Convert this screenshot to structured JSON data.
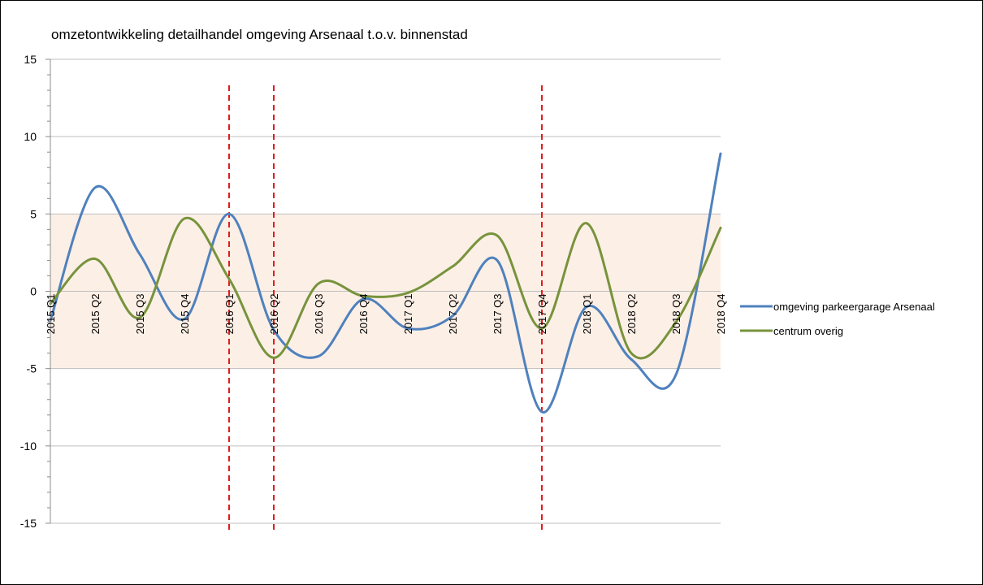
{
  "chart_data": {
    "type": "line",
    "title": "omzetontwikkeling detailhandel omgeving Arsenaal t.o.v. binnenstad",
    "xlabel": "",
    "ylabel": "",
    "ylim": [
      -15,
      15
    ],
    "yticks": [
      15,
      10,
      5,
      0,
      -5,
      -10,
      -15
    ],
    "grid": true,
    "smooth": true,
    "categories": [
      "2015 Q1",
      "2015 Q2",
      "2015 Q3",
      "2015 Q4",
      "2016 Q1",
      "2016 Q2",
      "2016 Q3",
      "2016 Q4",
      "2017 Q1",
      "2017 Q2",
      "2017 Q3",
      "2017 Q4",
      "2018 Q1",
      "2018 Q2",
      "2018 Q3",
      "2018 Q4"
    ],
    "band": {
      "from": -5,
      "to": 5,
      "color": "#fcefe6"
    },
    "markers": {
      "categories": [
        "2016 Q1",
        "2016 Q2",
        "2017 Q4"
      ],
      "color": "#e31a1c",
      "style": "dashed"
    },
    "legend_position": "right",
    "series": [
      {
        "name": "omgeving parkeergarage Arsenaal",
        "color": "#4f81bd",
        "values": [
          -1.9,
          6.7,
          2.4,
          -1.8,
          5.0,
          -2.5,
          -4.2,
          -0.5,
          -2.4,
          -1.6,
          2.0,
          -7.8,
          -1.0,
          -4.4,
          -5.4,
          8.9
        ]
      },
      {
        "name": "centrum overig",
        "color": "#77933c",
        "values": [
          -0.8,
          2.1,
          -1.7,
          4.7,
          0.8,
          -4.3,
          0.5,
          -0.3,
          -0.1,
          1.6,
          3.6,
          -2.4,
          4.4,
          -4.0,
          -2.0,
          4.1
        ]
      }
    ]
  }
}
